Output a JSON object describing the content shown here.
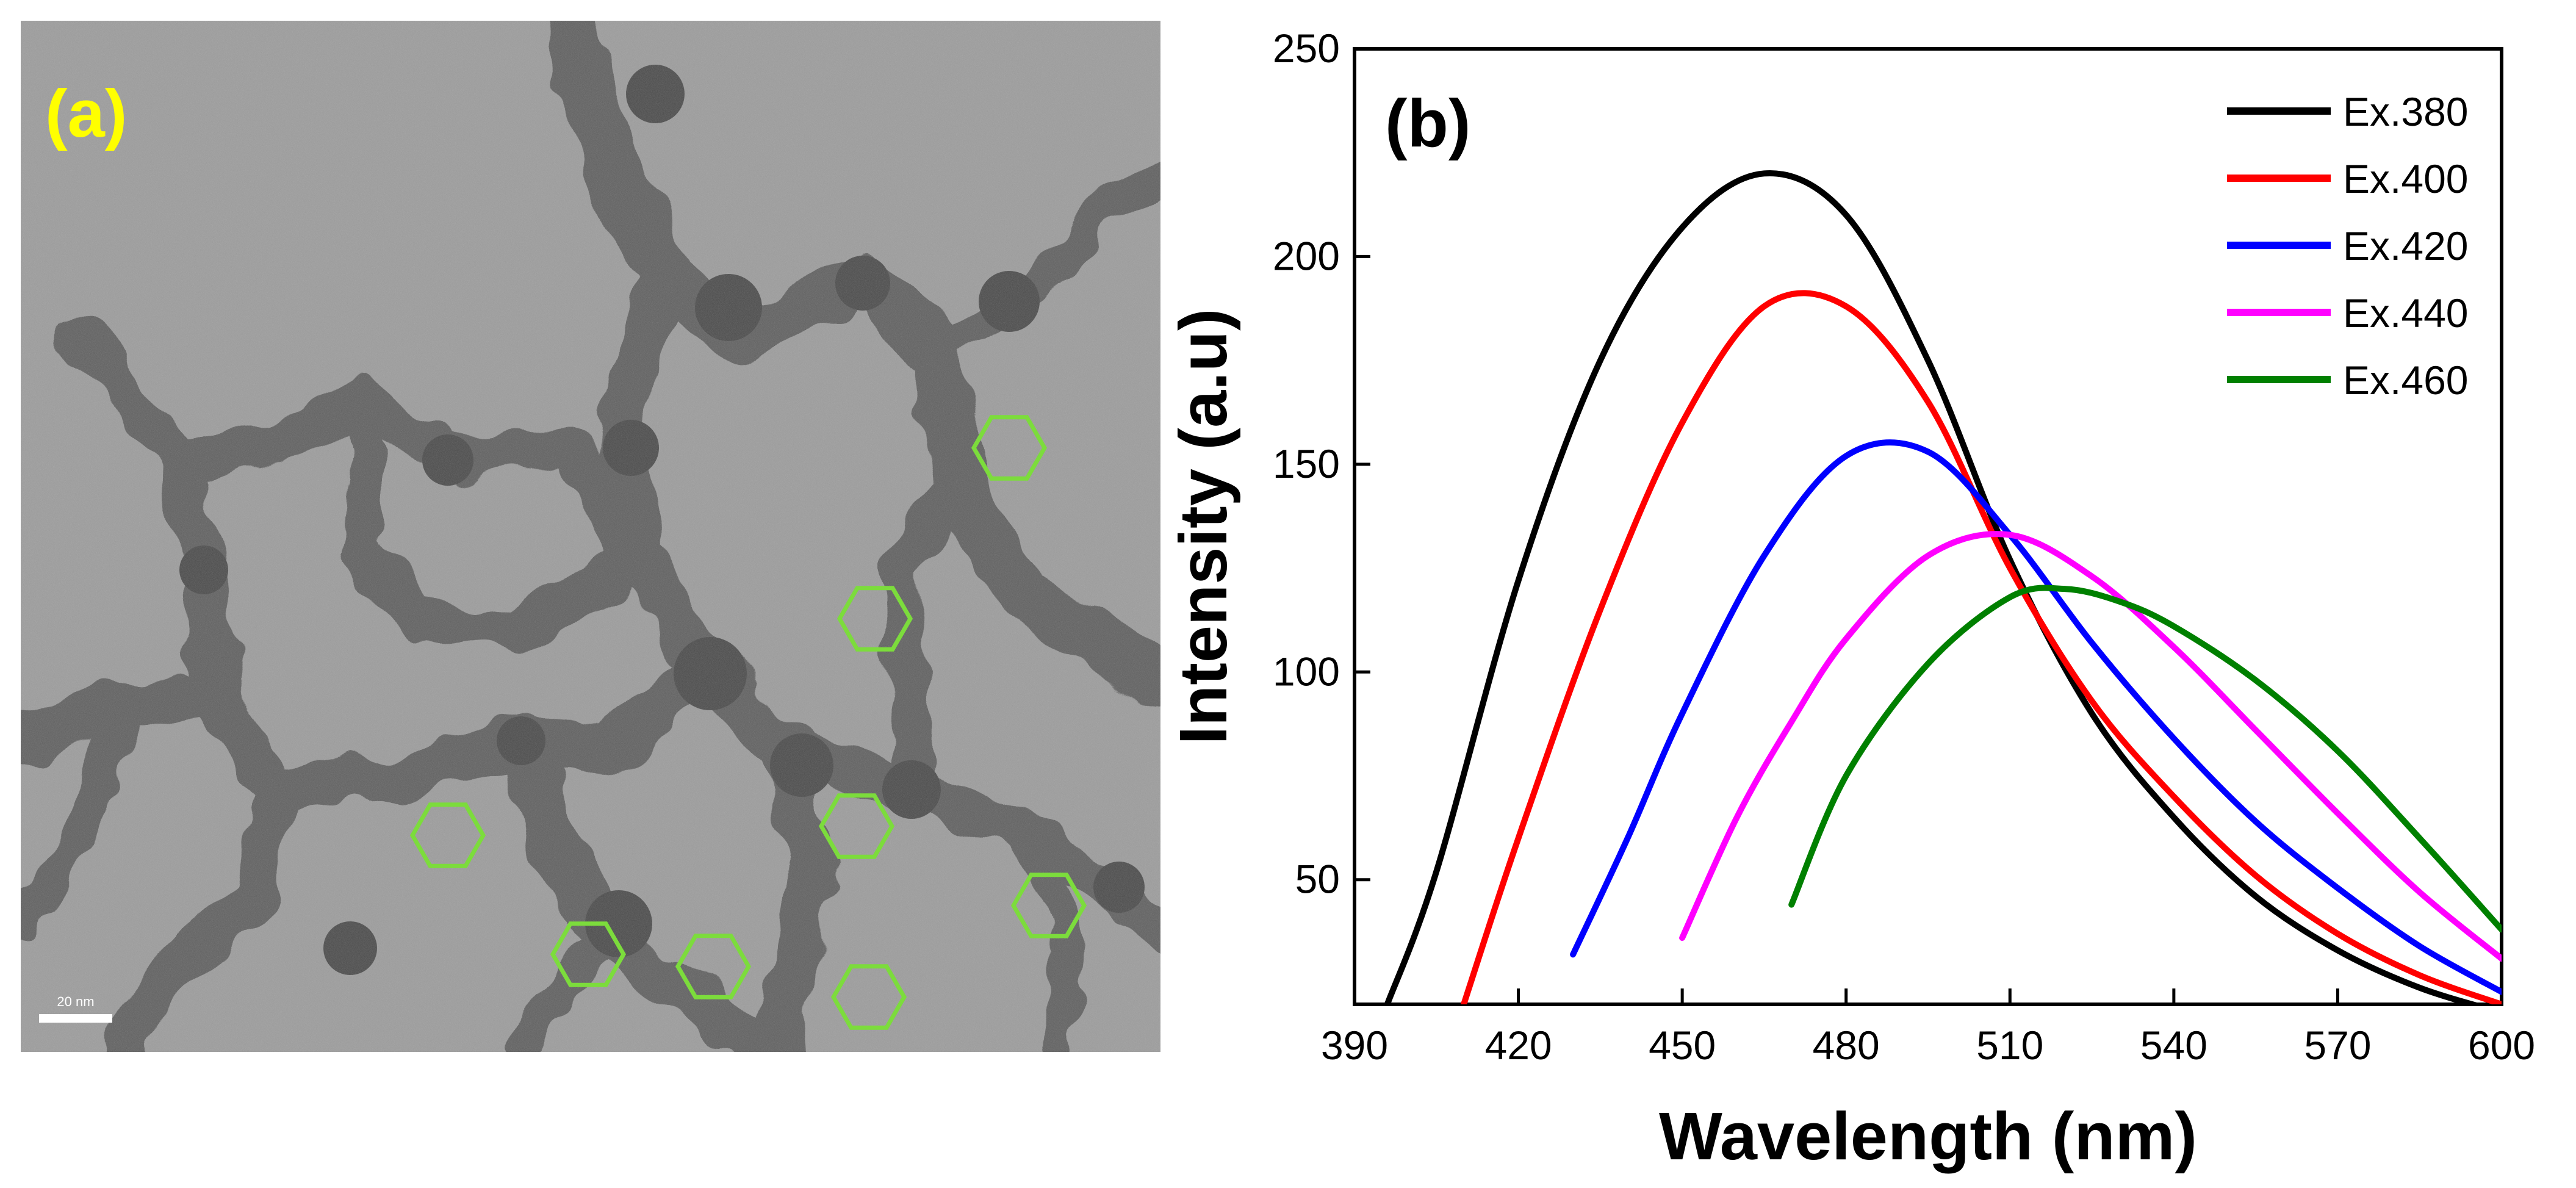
{
  "panel_a": {
    "label": "(a)",
    "scale_bar_text": "20 nm",
    "hexagon_color": "#7cdc3c",
    "label_color": "#ffff00",
    "hexagon_count": 8
  },
  "chart_data": {
    "type": "line",
    "panel_label": "(b)",
    "title": "",
    "xlabel": "Wavelength (nm)",
    "ylabel": "Intensity (a.u)",
    "xlim": [
      390,
      600
    ],
    "ylim": [
      20,
      250
    ],
    "xticks": [
      390,
      420,
      450,
      480,
      510,
      540,
      570,
      600
    ],
    "yticks": [
      50,
      100,
      150,
      200,
      250
    ],
    "legend_position": "top-right",
    "series": [
      {
        "name": "Ex.380",
        "color": "#000000",
        "x": [
          396,
          405,
          420,
          435,
          450,
          465,
          480,
          495,
          510,
          525,
          540,
          555,
          570,
          585,
          600
        ],
        "y": [
          20,
          52,
          122,
          175,
          207,
          220,
          210,
          175,
          127,
          90,
          65,
          46,
          33,
          24,
          18
        ]
      },
      {
        "name": "Ex.400",
        "color": "#ff0000",
        "x": [
          410,
          420,
          435,
          450,
          465,
          480,
          495,
          510,
          525,
          540,
          555,
          570,
          585,
          600
        ],
        "y": [
          20,
          60,
          115,
          160,
          188,
          188,
          165,
          125,
          93,
          70,
          51,
          37,
          27,
          20
        ]
      },
      {
        "name": "Ex.420",
        "color": "#0000ff",
        "x": [
          430,
          440,
          450,
          465,
          480,
          495,
          510,
          525,
          540,
          555,
          570,
          585,
          600
        ],
        "y": [
          32,
          60,
          90,
          128,
          152,
          153,
          133,
          107,
          84,
          64,
          48,
          34,
          23
        ]
      },
      {
        "name": "Ex.440",
        "color": "#ff00ff",
        "x": [
          450,
          460,
          470,
          480,
          495,
          510,
          525,
          540,
          555,
          570,
          585,
          600
        ],
        "y": [
          36,
          65,
          88,
          108,
          128,
          133,
          123,
          106,
          86,
          66,
          47,
          31
        ]
      },
      {
        "name": "Ex.460",
        "color": "#008000",
        "x": [
          470,
          480,
          495,
          510,
          520,
          530,
          540,
          555,
          570,
          585,
          600
        ],
        "y": [
          44,
          75,
          102,
          118,
          120,
          117,
          111,
          98,
          81,
          60,
          38
        ]
      }
    ]
  }
}
